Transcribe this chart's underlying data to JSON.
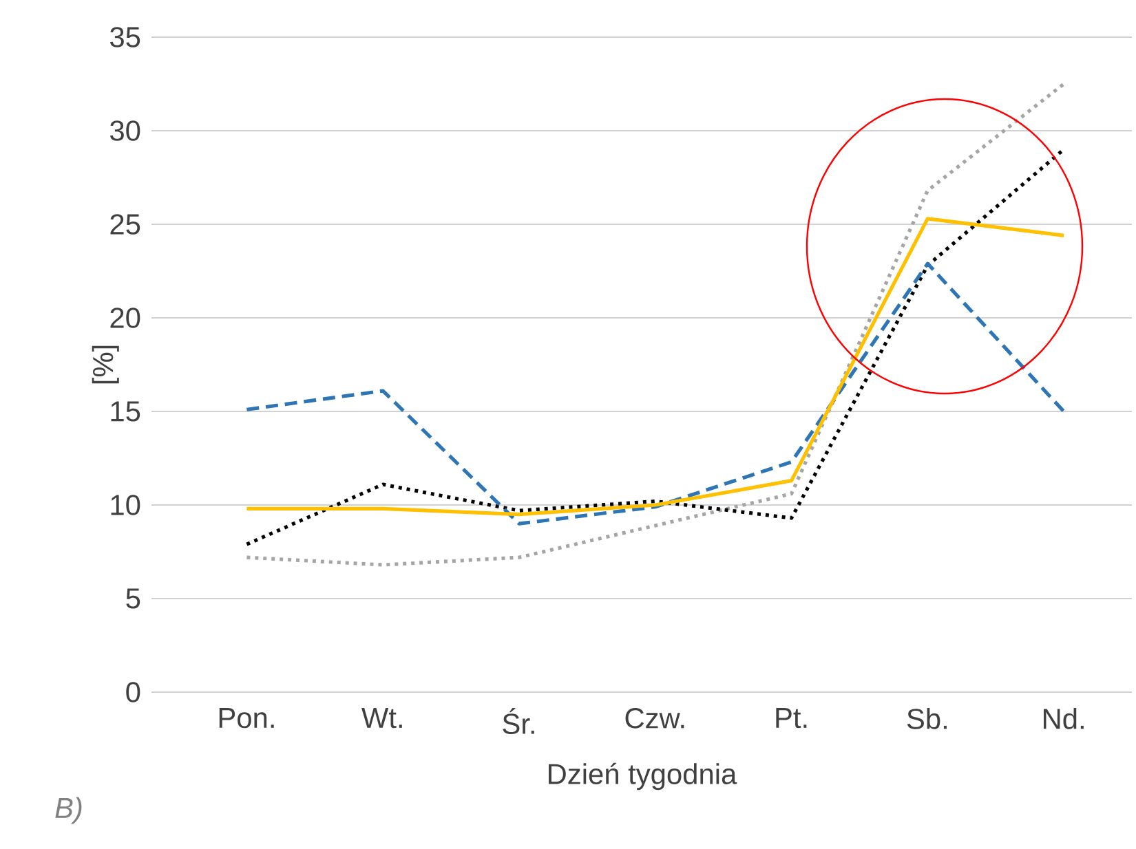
{
  "chart_data": {
    "type": "line",
    "xlabel": "Dzień tygodnia",
    "ylabel": "[%]",
    "categories": [
      "Pon.",
      "Wt.",
      "Śr.",
      "Czw.",
      "Pt.",
      "Sb.",
      "Nd."
    ],
    "series": [
      {
        "color": "#a5a5a5",
        "line_style": "dotted",
        "values": [
          7.2,
          6.8,
          7.2,
          8.9,
          10.6,
          26.8,
          32.5
        ]
      },
      {
        "color": "#000000",
        "line_style": "dotted",
        "values": [
          7.9,
          11.1,
          9.7,
          10.2,
          9.3,
          22.8,
          29.0
        ]
      },
      {
        "color": "#2e75b6",
        "line_style": "dashed",
        "values": [
          15.1,
          16.1,
          9.0,
          9.9,
          12.3,
          22.9,
          15.0
        ]
      },
      {
        "color": "#ffc000",
        "line_style": "solid",
        "values": [
          9.8,
          9.8,
          9.5,
          10.0,
          11.3,
          25.3,
          24.4
        ]
      }
    ],
    "ylim": [
      0,
      35
    ],
    "yticks": [
      0,
      5,
      10,
      15,
      20,
      25,
      30,
      35
    ],
    "grid": "y",
    "marker": "none",
    "annotations": [
      "B)"
    ]
  }
}
